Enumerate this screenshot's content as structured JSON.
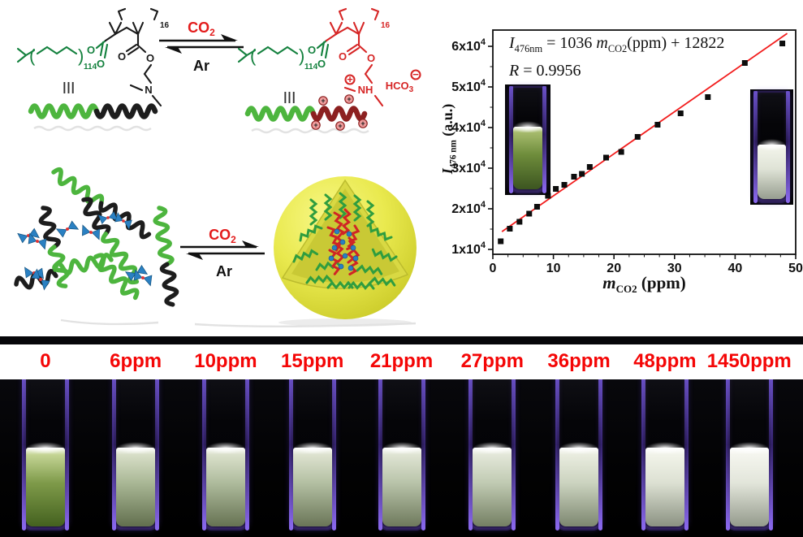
{
  "scheme": {
    "co2_base": "CO",
    "co2_sub": "2",
    "ar": "Ar",
    "peg_repeat": "114",
    "block_repeat": "16",
    "paren_open": "(",
    "paren_close": ")",
    "atom_o": "O",
    "atom_n": "N",
    "nh": "NH",
    "hco3_base": "HCO",
    "hco3_sub": "3",
    "plus": "+",
    "minus": "−",
    "equiv": "|||",
    "colors": {
      "structure_green": "#14813e",
      "structure_black": "#1a1a1a",
      "structure_red": "#d62626",
      "co2_red": "#e31c1c",
      "chain_green": "#4db53e",
      "chain_black": "#1d1d1d",
      "chain_dark_red": "#8c2020",
      "charge_bead_fill": "#ef9d9d",
      "dye_blue": "#2a80c2",
      "dye_center_red": "#e03434",
      "micelle_yellow": "#e9e94e",
      "micelle_core_red": "#d02525",
      "micelle_chain_green": "#2f9d3f"
    }
  },
  "chart_data": {
    "type": "scatter",
    "x": [
      1.3,
      2.8,
      4.4,
      6.0,
      7.3,
      9.1,
      10.4,
      11.8,
      13.4,
      14.7,
      16.0,
      18.7,
      21.2,
      23.9,
      27.2,
      31.0,
      35.5,
      41.6,
      47.8
    ],
    "y": [
      12000,
      15100,
      16800,
      18800,
      20500,
      23200,
      24900,
      25900,
      27900,
      28600,
      30300,
      32600,
      34000,
      37700,
      40700,
      43500,
      47500,
      55900,
      60700
    ],
    "fit": {
      "slope": 1036,
      "intercept": 12822,
      "x_start": 1.5,
      "x_end": 48.6,
      "color": "#f21d1d"
    },
    "marker": {
      "shape": "square",
      "color": "#0d0d0d",
      "size": 7
    },
    "xlim": [
      0,
      50
    ],
    "ylim": [
      8800,
      64000
    ],
    "xticks": [
      0,
      10,
      20,
      30,
      40,
      50
    ],
    "x_minor_step": 2.5,
    "yticks": [
      {
        "value": 10000,
        "base": "1x10",
        "exp": "4"
      },
      {
        "value": 20000,
        "base": "2x10",
        "exp": "4"
      },
      {
        "value": 30000,
        "base": "3x10",
        "exp": "4"
      },
      {
        "value": 40000,
        "base": "4x10",
        "exp": "4"
      },
      {
        "value": 50000,
        "base": "5x10",
        "exp": "4"
      },
      {
        "value": 60000,
        "base": "6x10",
        "exp": "4"
      }
    ],
    "y_minor_step": 5000,
    "xlabel": {
      "var": "m",
      "sub": "CO2",
      "rest": " (ppm)"
    },
    "ylabel": {
      "var": "I",
      "sub": "476 nm",
      "rest": " (a.u.)"
    },
    "equation": {
      "var1": "I",
      "sub1": "476nm",
      "mid": " = 1036 ",
      "var2": "m",
      "sub2": "CO2",
      "rest": "(ppm) + 12822"
    },
    "r_label": {
      "var": "R",
      "rest": " = 0.9956"
    },
    "axis_color": "#111111",
    "grid": false,
    "legend": null
  },
  "chart_insets": {
    "low_co2": {
      "light": "#a6bb6d",
      "mid": "#6e8c3b",
      "dark": "#3c5520"
    },
    "high_co2": {
      "light": "#f0f2e8",
      "mid": "#dfe3d6",
      "dark": "#979e90"
    }
  },
  "photo_strip": {
    "label_color": "#f40606",
    "samples": [
      {
        "label": "0",
        "liquid": {
          "light": "#c4d494",
          "mid": "#7e9a49",
          "dark": "#44611f"
        }
      },
      {
        "label": "6ppm",
        "liquid": {
          "light": "#d7dec7",
          "mid": "#a9b795",
          "dark": "#626f4e"
        }
      },
      {
        "label": "10ppm",
        "liquid": {
          "light": "#dae0cb",
          "mid": "#aebb9c",
          "dark": "#667252"
        }
      },
      {
        "label": "15ppm",
        "liquid": {
          "light": "#dde2cf",
          "mid": "#b3bfa2",
          "dark": "#6a7557"
        }
      },
      {
        "label": "21ppm",
        "liquid": {
          "light": "#dfe4d3",
          "mid": "#b8c3a9",
          "dark": "#6e795c"
        }
      },
      {
        "label": "27ppm",
        "liquid": {
          "light": "#e3e7d9",
          "mid": "#c0cab2",
          "dark": "#747f63"
        }
      },
      {
        "label": "36ppm",
        "liquid": {
          "light": "#e9ecdf",
          "mid": "#cbd3bf",
          "dark": "#7d8770"
        }
      },
      {
        "label": "48ppm",
        "liquid": {
          "light": "#f1f3e9",
          "mid": "#dce0d2",
          "dark": "#8b9282"
        }
      },
      {
        "label": "1450ppm",
        "liquid": {
          "light": "#f4f5ee",
          "mid": "#e2e5da",
          "dark": "#949a8c"
        }
      }
    ]
  }
}
